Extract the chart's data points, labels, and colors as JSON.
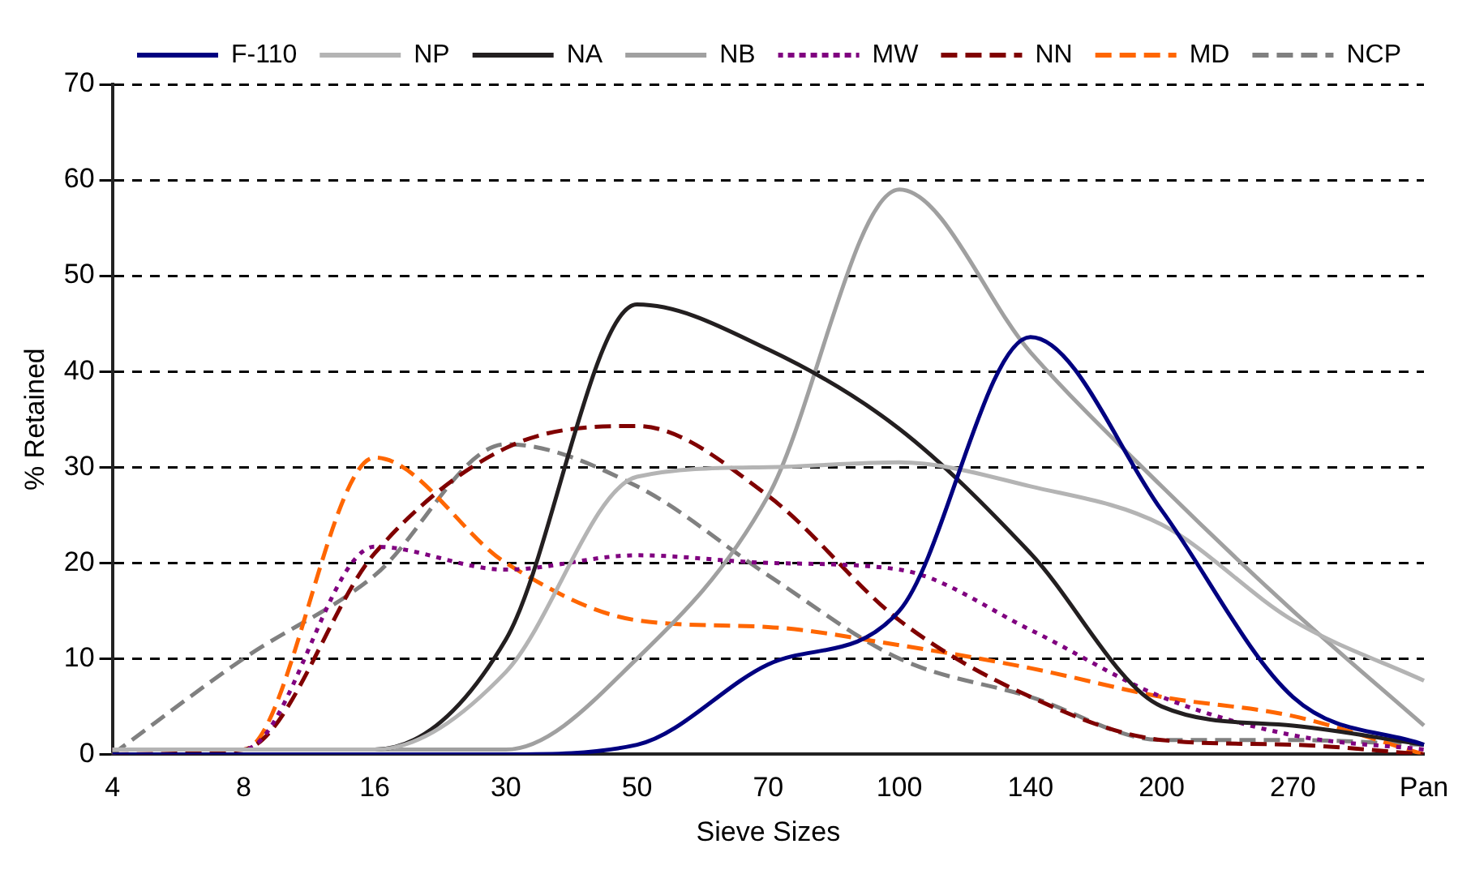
{
  "chart_data": {
    "type": "line",
    "xlabel": "Sieve Sizes",
    "ylabel": "% Retained",
    "categories": [
      "4",
      "8",
      "16",
      "30",
      "50",
      "70",
      "100",
      "140",
      "200",
      "270",
      "Pan"
    ],
    "ylim": [
      0,
      70
    ],
    "yticks": [
      0,
      10,
      20,
      30,
      40,
      50,
      60,
      70
    ],
    "grid": "y",
    "legend": "top right",
    "marker": "none",
    "series": [
      {
        "name": "F-110",
        "color": "#000080",
        "line_style": "solid",
        "values": [
          0,
          0,
          0,
          0,
          1,
          9.4,
          15,
          43.6,
          25.5,
          6,
          1
        ]
      },
      {
        "name": "NP",
        "color": "#b4b4b4",
        "line_style": "solid",
        "values": [
          0.5,
          0.5,
          0.5,
          8.6,
          29,
          30,
          30.5,
          28,
          24,
          14,
          7.7
        ]
      },
      {
        "name": "NA",
        "color": "#231f20",
        "line_style": "solid",
        "values": [
          0.5,
          0.5,
          0.5,
          12,
          47,
          42.3,
          34,
          21,
          5,
          3,
          1
        ]
      },
      {
        "name": "NB",
        "color": "#a0a0a0",
        "line_style": "solid",
        "values": [
          0.5,
          0.5,
          0.5,
          0.5,
          10,
          27,
          59,
          42,
          28,
          15,
          3
        ]
      },
      {
        "name": "MW",
        "color": "#800080",
        "line_style": "dotted",
        "values": [
          0.5,
          0.5,
          21.7,
          19.3,
          20.8,
          20,
          19.3,
          13,
          6,
          2,
          0.5
        ]
      },
      {
        "name": "NN",
        "color": "#800000",
        "line_style": "dashed",
        "values": [
          0,
          0.5,
          21,
          32,
          34.3,
          27,
          14,
          6,
          1.5,
          1,
          0
        ]
      },
      {
        "name": "MD",
        "color": "#ff6600",
        "line_style": "dashed",
        "values": [
          0.5,
          0.5,
          31,
          20,
          14,
          13.3,
          11.4,
          9,
          6,
          4,
          0
        ]
      },
      {
        "name": "NCP",
        "color": "#808080",
        "line_style": "dashed",
        "values": [
          0,
          10,
          18.7,
          32.4,
          28,
          18.7,
          10,
          6,
          1.5,
          1.5,
          1
        ]
      }
    ]
  }
}
